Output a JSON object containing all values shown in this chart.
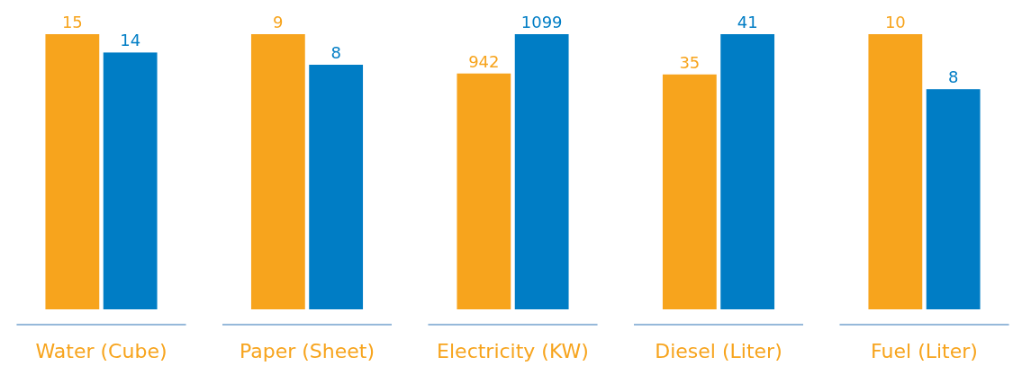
{
  "chart_data": [
    {
      "type": "bar",
      "categories": [
        "Water (Cube)"
      ],
      "series": [
        {
          "color": "#f7a41d",
          "values": [
            15
          ]
        },
        {
          "color": "#007dc5",
          "values": [
            14
          ]
        }
      ],
      "data_labels": true
    },
    {
      "type": "bar",
      "categories": [
        "Paper (Sheet)"
      ],
      "series": [
        {
          "color": "#f7a41d",
          "values": [
            9
          ]
        },
        {
          "color": "#007dc5",
          "values": [
            8
          ]
        }
      ],
      "data_labels": true
    },
    {
      "type": "bar",
      "categories": [
        "Electricity (KW)"
      ],
      "series": [
        {
          "color": "#f7a41d",
          "values": [
            942
          ]
        },
        {
          "color": "#007dc5",
          "values": [
            1099
          ]
        }
      ],
      "data_labels": true
    },
    {
      "type": "bar",
      "categories": [
        "Diesel (Liter)"
      ],
      "series": [
        {
          "color": "#f7a41d",
          "values": [
            35
          ]
        },
        {
          "color": "#007dc5",
          "values": [
            41
          ]
        }
      ],
      "data_labels": true
    },
    {
      "type": "bar",
      "categories": [
        "Fuel (Liter)"
      ],
      "series": [
        {
          "color": "#f7a41d",
          "values": [
            10
          ]
        },
        {
          "color": "#007dc5",
          "values": [
            8
          ]
        }
      ],
      "data_labels": true
    }
  ]
}
